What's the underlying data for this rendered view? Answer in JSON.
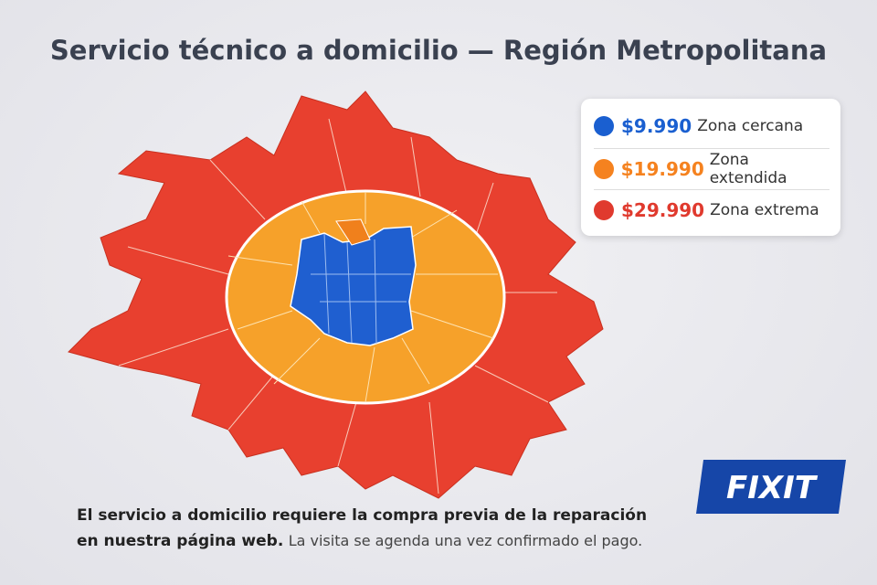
{
  "header": {
    "title": "Servicio técnico a domicilio — Región Metropolitana"
  },
  "legend": [
    {
      "price": "$9.990",
      "label": "Zona cercana"
    },
    {
      "price": "$19.990",
      "label": "Zona extendida"
    },
    {
      "price": "$29.990",
      "label": "Zona extrema"
    }
  ],
  "note": {
    "line1": "El servicio a domicilio requiere la compra previa de la reparación",
    "line2_bold": "en nuestra página web.",
    "line2_rest": "La visita se agenda una vez confirmado el pago."
  },
  "logo": "FIXIT"
}
